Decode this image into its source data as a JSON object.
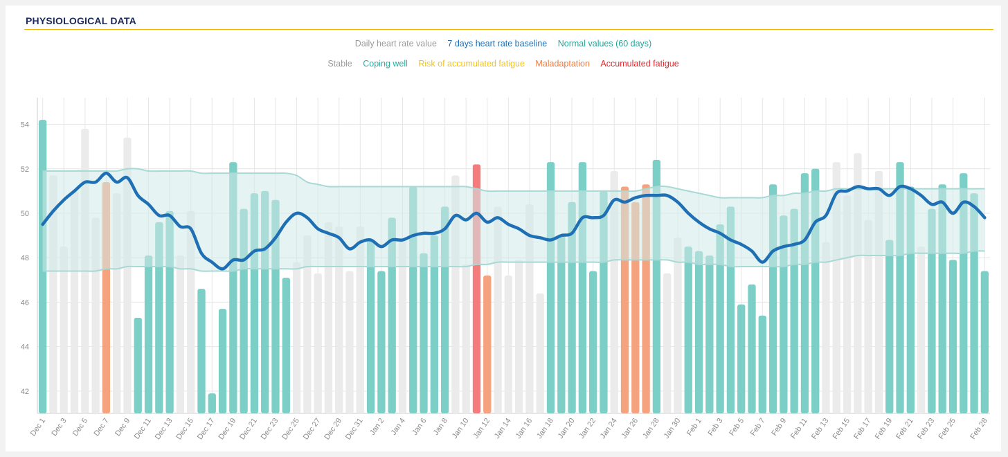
{
  "section": {
    "title": "PHYSIOLOGICAL DATA"
  },
  "legend": {
    "series": [
      {
        "label": "Daily heart rate value",
        "color": "#9b9b9b"
      },
      {
        "label": "7 days heart rate baseline",
        "color": "#1f6fb5"
      },
      {
        "label": "Normal values (60 days)",
        "color": "#26a69a"
      }
    ],
    "statuses": [
      {
        "label": "Stable",
        "color": "#9b9b9b"
      },
      {
        "label": "Coping well",
        "color": "#26b0a2"
      },
      {
        "label": "Risk of accumulated fatigue",
        "color": "#f3c31d"
      },
      {
        "label": "Maladaptation",
        "color": "#f07b3f"
      },
      {
        "label": "Accumulated fatigue",
        "color": "#e8262b"
      }
    ]
  },
  "chart_data": {
    "type": "bar",
    "ylim": [
      41,
      55.2
    ],
    "yticks": [
      42,
      44,
      46,
      48,
      50,
      52,
      54
    ],
    "grid": true,
    "legend_position": "top",
    "colors": {
      "stable": "#ebebeb",
      "coping": "#7ccfc6",
      "maladaptation": "#f5a27e",
      "fatigue": "#f57c7c",
      "baseline": "#1f6fb5",
      "band_fill": "#cfe9e7",
      "band_edge": "#a8d9d5"
    },
    "categories": [
      "Dec 1",
      "Dec 2",
      "Dec 3",
      "Dec 4",
      "Dec 5",
      "Dec 6",
      "Dec 7",
      "Dec 8",
      "Dec 9",
      "Dec 10",
      "Dec 11",
      "Dec 12",
      "Dec 13",
      "Dec 14",
      "Dec 15",
      "Dec 16",
      "Dec 17",
      "Dec 18",
      "Dec 19",
      "Dec 20",
      "Dec 21",
      "Dec 22",
      "Dec 23",
      "Dec 24",
      "Dec 25",
      "Dec 26",
      "Dec 27",
      "Dec 28",
      "Dec 29",
      "Dec 30",
      "Dec 31",
      "Jan 1",
      "Jan 2",
      "Jan 3",
      "Jan 4",
      "Jan 5",
      "Jan 6",
      "Jan 7",
      "Jan 8",
      "Jan 9",
      "Jan 10",
      "Jan 11",
      "Jan 12",
      "Jan 13",
      "Jan 14",
      "Jan 15",
      "Jan 16",
      "Jan 17",
      "Jan 18",
      "Jan 19",
      "Jan 20",
      "Jan 21",
      "Jan 22",
      "Jan 23",
      "Jan 24",
      "Jan 25",
      "Jan 26",
      "Jan 27",
      "Jan 28",
      "Jan 29",
      "Jan 30",
      "Jan 31",
      "Feb 1",
      "Feb 2",
      "Feb 3",
      "Feb 4",
      "Feb 5",
      "Feb 6",
      "Feb 7",
      "Feb 8",
      "Feb 9",
      "Feb 10",
      "Feb 11",
      "Feb 12",
      "Feb 13",
      "Feb 14",
      "Feb 15",
      "Feb 16",
      "Feb 17",
      "Feb 18",
      "Feb 19",
      "Feb 20",
      "Feb 21",
      "Feb 22",
      "Feb 23",
      "Feb 24",
      "Feb 25",
      "Feb 26",
      "Feb 27",
      "Feb 28"
    ],
    "xtick_labels": [
      "Dec 1",
      "Dec 3",
      "Dec 5",
      "Dec 7",
      "Dec 9",
      "Dec 11",
      "Dec 13",
      "Dec 15",
      "Dec 17",
      "Dec 19",
      "Dec 21",
      "Dec 23",
      "Dec 25",
      "Dec 27",
      "Dec 29",
      "Dec 31",
      "Jan 2",
      "Jan 4",
      "Jan 6",
      "Jan 8",
      "Jan 10",
      "Jan 12",
      "Jan 14",
      "Jan 16",
      "Jan 18",
      "Jan 20",
      "Jan 22",
      "Jan 24",
      "Jan 26",
      "Jan 28",
      "Jan 30",
      "Feb 1",
      "Feb 3",
      "Feb 5",
      "Feb 7",
      "Feb 9",
      "Feb 11",
      "Feb 13",
      "Feb 15",
      "Feb 17",
      "Feb 19",
      "Feb 21",
      "Feb 23",
      "Feb 25",
      "Feb 28"
    ],
    "daily_heart_rate": [
      54.2,
      51.7,
      48.5,
      51.0,
      53.8,
      49.8,
      51.4,
      50.9,
      53.4,
      45.3,
      48.1,
      49.6,
      50.1,
      48.1,
      50.1,
      46.6,
      41.9,
      45.7,
      52.3,
      50.2,
      50.9,
      51.0,
      50.6,
      47.1,
      47.8,
      49.0,
      47.3,
      49.6,
      49.4,
      47.4,
      49.4,
      48.8,
      47.4,
      49.8,
      48.9,
      51.2,
      48.2,
      49.0,
      50.3,
      51.7,
      47.7,
      52.2,
      47.2,
      50.3,
      47.2,
      47.9,
      50.4,
      46.4,
      52.3,
      49.0,
      50.5,
      52.3,
      47.4,
      51.0,
      51.9,
      51.2,
      50.5,
      51.3,
      52.4,
      47.3,
      48.9,
      48.5,
      48.3,
      48.1,
      49.5,
      50.3,
      45.9,
      46.8,
      45.4,
      51.3,
      49.9,
      50.2,
      51.8,
      52.0,
      48.7,
      52.3,
      50.8,
      52.7,
      49.7,
      51.9,
      48.8,
      52.3,
      51.2,
      48.5,
      50.2,
      51.3,
      47.9,
      51.8,
      50.9,
      47.4
    ],
    "status": [
      "coping",
      "stable",
      "stable",
      "stable",
      "stable",
      "stable",
      "maladaptation",
      "stable",
      "stable",
      "coping",
      "coping",
      "coping",
      "coping",
      "stable",
      "stable",
      "coping",
      "coping",
      "coping",
      "coping",
      "coping",
      "coping",
      "coping",
      "coping",
      "coping",
      "stable",
      "stable",
      "stable",
      "stable",
      "stable",
      "stable",
      "stable",
      "coping",
      "coping",
      "coping",
      "stable",
      "coping",
      "coping",
      "coping",
      "coping",
      "stable",
      "stable",
      "fatigue",
      "maladaptation",
      "stable",
      "stable",
      "stable",
      "stable",
      "stable",
      "coping",
      "coping",
      "coping",
      "coping",
      "coping",
      "coping",
      "stable",
      "maladaptation",
      "maladaptation",
      "maladaptation",
      "coping",
      "stable",
      "stable",
      "coping",
      "coping",
      "coping",
      "coping",
      "coping",
      "coping",
      "coping",
      "coping",
      "coping",
      "coping",
      "coping",
      "coping",
      "coping",
      "stable",
      "stable",
      "stable",
      "stable",
      "stable",
      "stable",
      "coping",
      "coping",
      "coping",
      "stable",
      "coping",
      "coping",
      "coping",
      "coping",
      "coping",
      "coping"
    ],
    "baseline_7day": [
      49.5,
      50.1,
      50.6,
      51.0,
      51.4,
      51.4,
      51.8,
      51.4,
      51.6,
      50.8,
      50.4,
      49.9,
      49.9,
      49.4,
      49.3,
      48.2,
      47.8,
      47.5,
      47.9,
      47.9,
      48.3,
      48.4,
      48.9,
      49.6,
      50.0,
      49.8,
      49.3,
      49.1,
      48.9,
      48.4,
      48.7,
      48.8,
      48.5,
      48.8,
      48.8,
      49.0,
      49.1,
      49.1,
      49.3,
      49.9,
      49.7,
      50.0,
      49.6,
      49.8,
      49.5,
      49.3,
      49.0,
      48.9,
      48.8,
      49.0,
      49.1,
      49.8,
      49.8,
      49.9,
      50.6,
      50.5,
      50.7,
      50.8,
      50.8,
      50.8,
      50.5,
      50.0,
      49.6,
      49.3,
      49.1,
      48.8,
      48.6,
      48.3,
      47.8,
      48.3,
      48.5,
      48.6,
      48.8,
      49.6,
      49.9,
      50.9,
      51.0,
      51.2,
      51.1,
      51.1,
      50.8,
      51.2,
      51.1,
      50.8,
      50.4,
      50.5,
      50.0,
      50.5,
      50.3,
      49.8
    ],
    "normal_upper": [
      51.9,
      51.9,
      51.9,
      51.9,
      51.9,
      51.9,
      51.9,
      51.9,
      52.0,
      52.0,
      51.9,
      51.9,
      51.9,
      51.9,
      51.9,
      51.8,
      51.8,
      51.8,
      51.8,
      51.8,
      51.8,
      51.8,
      51.8,
      51.8,
      51.7,
      51.4,
      51.3,
      51.2,
      51.2,
      51.2,
      51.2,
      51.2,
      51.2,
      51.2,
      51.2,
      51.2,
      51.2,
      51.2,
      51.2,
      51.2,
      51.2,
      51.1,
      51.0,
      51.0,
      51.0,
      51.0,
      51.0,
      51.0,
      51.0,
      51.0,
      51.0,
      51.0,
      51.0,
      51.0,
      51.0,
      51.0,
      51.0,
      51.1,
      51.2,
      51.2,
      51.1,
      51.0,
      50.9,
      50.8,
      50.7,
      50.7,
      50.7,
      50.7,
      50.7,
      50.8,
      50.8,
      50.9,
      50.9,
      51.0,
      51.0,
      51.1,
      51.1,
      51.1,
      51.1,
      51.1,
      51.1,
      51.1,
      51.1,
      51.1,
      51.1,
      51.1,
      51.1,
      51.1,
      51.1,
      51.1
    ],
    "normal_lower": [
      47.4,
      47.4,
      47.4,
      47.4,
      47.4,
      47.4,
      47.5,
      47.5,
      47.6,
      47.6,
      47.6,
      47.6,
      47.6,
      47.5,
      47.5,
      47.4,
      47.4,
      47.4,
      47.4,
      47.5,
      47.5,
      47.5,
      47.5,
      47.5,
      47.5,
      47.6,
      47.6,
      47.6,
      47.6,
      47.6,
      47.6,
      47.6,
      47.6,
      47.6,
      47.6,
      47.6,
      47.6,
      47.6,
      47.6,
      47.6,
      47.6,
      47.7,
      47.7,
      47.8,
      47.8,
      47.8,
      47.8,
      47.8,
      47.8,
      47.8,
      47.8,
      47.8,
      47.8,
      47.8,
      47.9,
      47.9,
      47.9,
      47.9,
      47.9,
      47.9,
      47.8,
      47.8,
      47.7,
      47.7,
      47.7,
      47.6,
      47.6,
      47.6,
      47.6,
      47.6,
      47.6,
      47.7,
      47.7,
      47.8,
      47.8,
      47.9,
      48.0,
      48.1,
      48.1,
      48.1,
      48.1,
      48.1,
      48.2,
      48.2,
      48.2,
      48.2,
      48.2,
      48.2,
      48.3,
      48.3
    ]
  }
}
